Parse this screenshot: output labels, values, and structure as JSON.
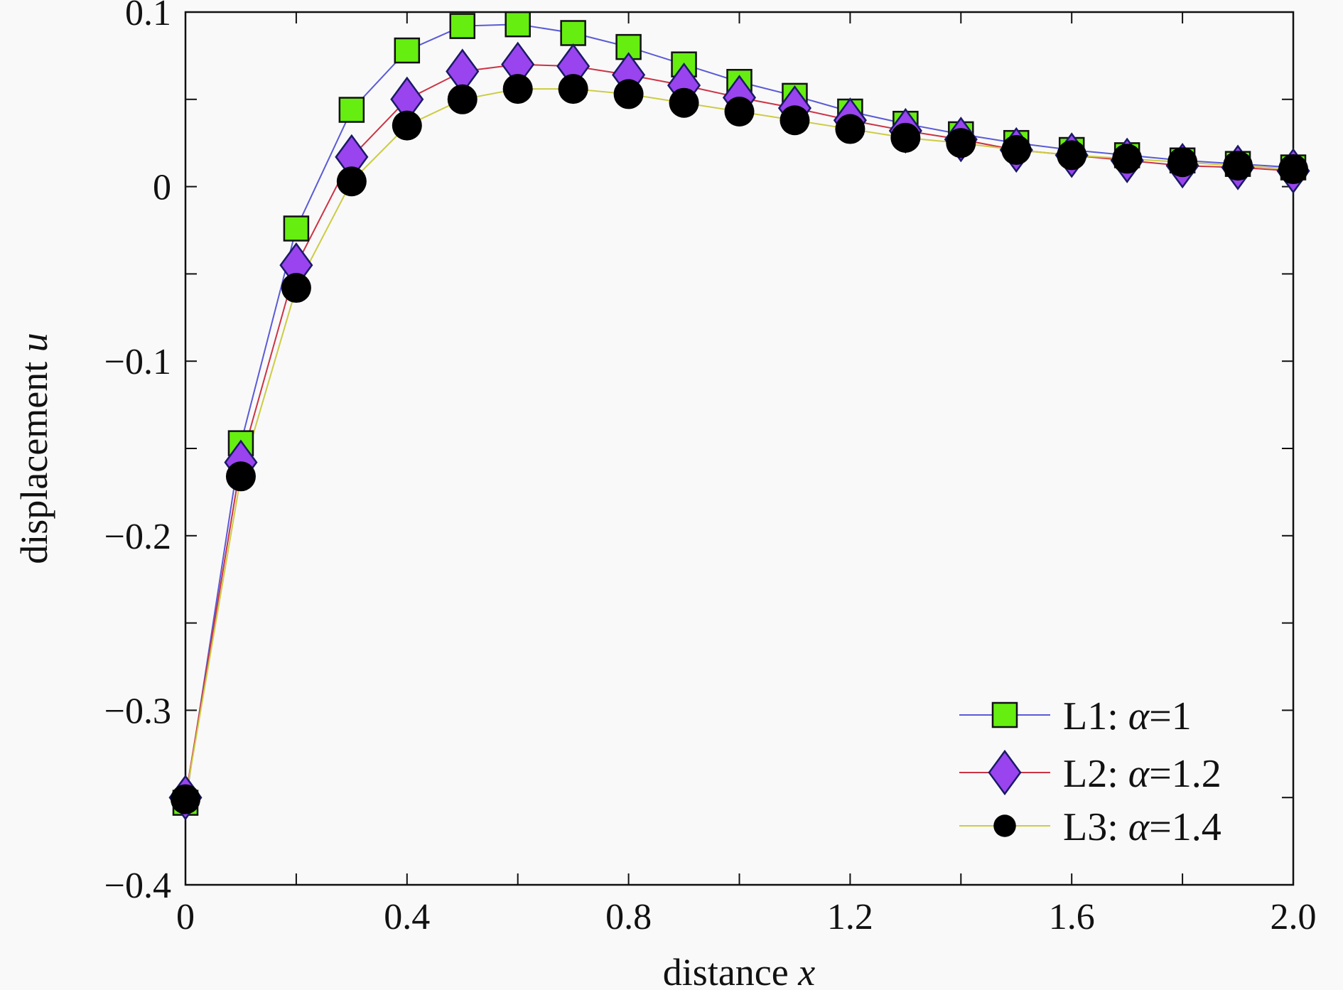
{
  "chart_data": {
    "type": "line",
    "title": "",
    "xlabel": "distance",
    "xlabel_var": "x",
    "ylabel": "displacement",
    "ylabel_var": "u",
    "xlim": [
      0,
      2.0
    ],
    "ylim": [
      -0.4,
      0.1
    ],
    "xticks": [
      0,
      0.4,
      0.8,
      1.2,
      1.6,
      2.0
    ],
    "xtick_labels": [
      "0",
      "0.4",
      "0.8",
      "1.2",
      "1.6",
      "2.0"
    ],
    "yticks": [
      -0.4,
      -0.3,
      -0.2,
      -0.1,
      0,
      0.1
    ],
    "ytick_labels": [
      "−0.4",
      "−0.3",
      "−0.2",
      "−0.1",
      "0",
      "0.1"
    ],
    "legend_position": "bottom-right",
    "x": [
      0,
      0.1,
      0.2,
      0.3,
      0.4,
      0.5,
      0.6,
      0.7,
      0.8,
      0.9,
      1.0,
      1.1,
      1.2,
      1.3,
      1.4,
      1.5,
      1.6,
      1.7,
      1.8,
      1.9,
      2.0
    ],
    "series": [
      {
        "name": "L1",
        "alpha_label": "α",
        "alpha_value": "=1",
        "marker": "square",
        "marker_color": "#66ee11",
        "line_color": "#5a5ad8",
        "values": [
          -0.353,
          -0.147,
          -0.024,
          0.044,
          0.078,
          0.092,
          0.093,
          0.088,
          0.08,
          0.07,
          0.06,
          0.052,
          0.043,
          0.036,
          0.03,
          0.025,
          0.021,
          0.018,
          0.015,
          0.013,
          0.011
        ]
      },
      {
        "name": "L2",
        "alpha_label": "α",
        "alpha_value": "=1.2",
        "marker": "diamond",
        "marker_color": "#9944ee",
        "line_color": "#cc3344",
        "values": [
          -0.35,
          -0.158,
          -0.045,
          0.017,
          0.05,
          0.066,
          0.07,
          0.069,
          0.064,
          0.058,
          0.051,
          0.045,
          0.038,
          0.032,
          0.027,
          0.021,
          0.018,
          0.015,
          0.012,
          0.011,
          0.009
        ]
      },
      {
        "name": "L3",
        "alpha_label": "α",
        "alpha_value": "=1.4",
        "marker": "circle",
        "marker_color": "#000000",
        "line_color": "#cccc44",
        "values": [
          -0.351,
          -0.166,
          -0.058,
          0.003,
          0.035,
          0.05,
          0.056,
          0.056,
          0.053,
          0.048,
          0.043,
          0.038,
          0.033,
          0.028,
          0.025,
          0.021,
          0.018,
          0.016,
          0.014,
          0.012,
          0.01
        ]
      }
    ]
  }
}
